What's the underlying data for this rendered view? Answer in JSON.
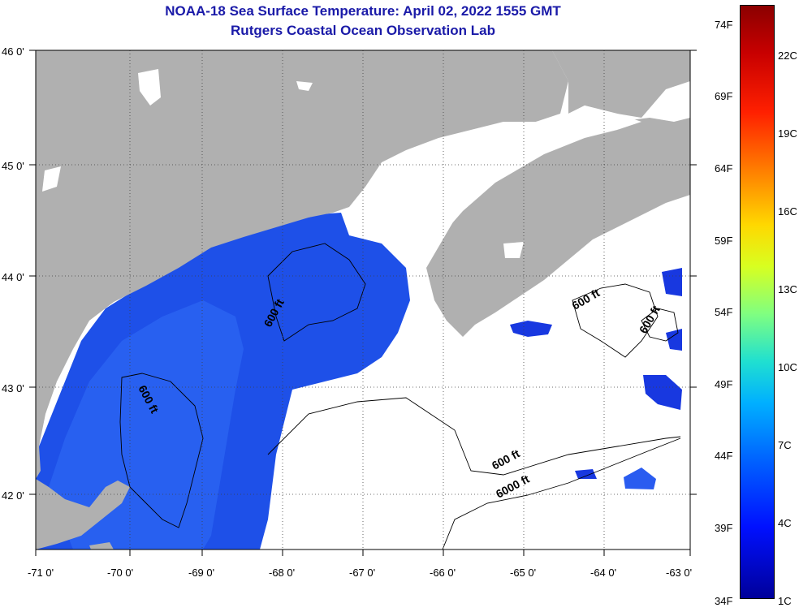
{
  "title": {
    "line1": "NOAA-18 Sea Surface Temperature:  April 02, 2022 1555 GMT",
    "line2": "Rutgers Coastal Ocean Observation Lab"
  },
  "axes": {
    "lat_labels": [
      "46 0'",
      "45 0'",
      "44 0'",
      "43 0'",
      "42 0'"
    ],
    "lon_labels": [
      "-71 0'",
      "-70 0'",
      "-69 0'",
      "-68 0'",
      "-67 0'",
      "-66 0'",
      "-65 0'",
      "-64 0'",
      "-63 0'"
    ]
  },
  "contours": {
    "labels": [
      "600 ft",
      "600 ft",
      "600 ft",
      "600 ft",
      "600 ft",
      "6000 ft"
    ]
  },
  "colorbar": {
    "f_labels": [
      "74F",
      "69F",
      "64F",
      "59F",
      "54F",
      "49F",
      "44F",
      "39F",
      "34F"
    ],
    "c_labels": [
      "22C",
      "19C",
      "16C",
      "13C",
      "10C",
      "7C",
      "4C",
      "1C"
    ]
  },
  "colors": {
    "land": "#b0b0b0",
    "ocean_nodata": "#ffffff",
    "sst_cold": "#1040e0",
    "title": "#1a1aa8"
  }
}
